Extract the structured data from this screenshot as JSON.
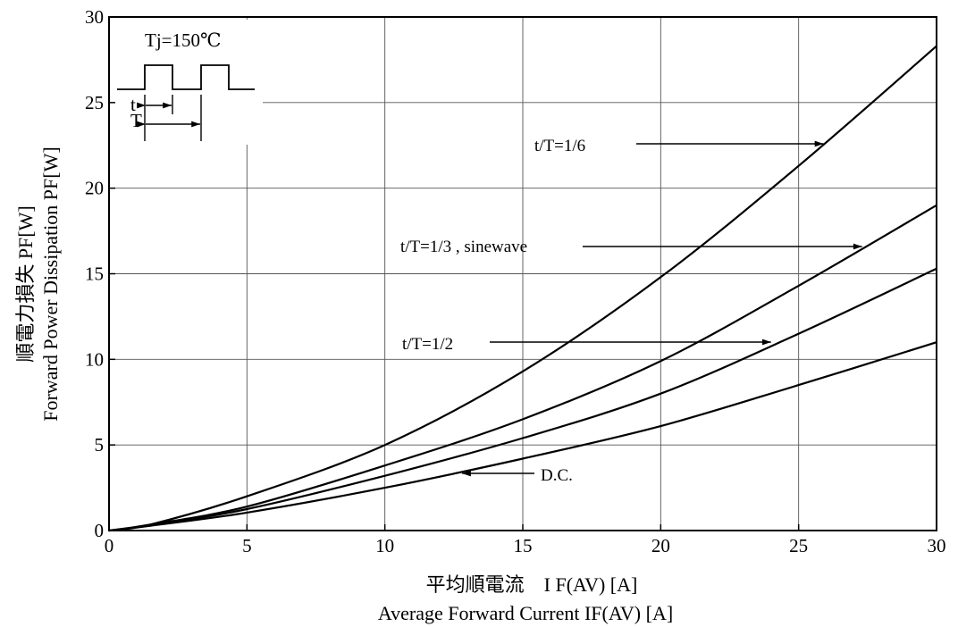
{
  "chart_data": {
    "type": "line",
    "xlabel_jp": "平均順電流　I F(AV)  [A]",
    "xlabel_en": "Average Forward Current IF(AV) [A]",
    "ylabel_jp": "順電力損失 PF[W]",
    "ylabel_en": "Forward Power Dissipation PF[W]",
    "xlim": [
      0,
      30
    ],
    "ylim": [
      0,
      30
    ],
    "xticks": [
      "0",
      "5",
      "10",
      "15",
      "20",
      "25",
      "30"
    ],
    "yticks": [
      "0",
      "5",
      "10",
      "15",
      "20",
      "25",
      "30"
    ],
    "grid": true,
    "inset_label": "Tj=150℃",
    "inset_t": "t",
    "inset_T": "T",
    "series": [
      {
        "name": "t/T=1/6",
        "x": [
          0,
          1.5,
          5,
          10,
          15,
          20,
          25,
          30
        ],
        "y": [
          0,
          0.35,
          2.0,
          5.0,
          9.3,
          14.8,
          21.3,
          28.3
        ]
      },
      {
        "name": "t/T=1/3 , sinewave",
        "x": [
          0,
          1.5,
          5,
          10,
          15,
          20,
          25,
          30
        ],
        "y": [
          0,
          0.35,
          1.4,
          3.8,
          6.5,
          9.9,
          14.3,
          19.0
        ]
      },
      {
        "name": "t/T=1/2",
        "x": [
          0,
          1.5,
          5,
          10,
          15,
          20,
          25,
          30
        ],
        "y": [
          0,
          0.3,
          1.25,
          3.2,
          5.4,
          8.0,
          11.5,
          15.3
        ]
      },
      {
        "name": "D.C.",
        "x": [
          0,
          1.5,
          5,
          10,
          15,
          20,
          25,
          30
        ],
        "y": [
          0,
          0.28,
          1.05,
          2.5,
          4.2,
          6.1,
          8.5,
          11.0
        ]
      }
    ],
    "annotations": [
      {
        "text": "t/T=1/6",
        "series": 0,
        "arrow_to_x": 25.9
      },
      {
        "text": "t/T=1/3  , sinewave",
        "series": 1,
        "arrow_to_x": 27.3
      },
      {
        "text": "t/T=1/2",
        "series": 2,
        "arrow_to_x": 24.0
      },
      {
        "text": "D.C.",
        "series": 3,
        "arrow_to_x": 12.8
      }
    ]
  }
}
